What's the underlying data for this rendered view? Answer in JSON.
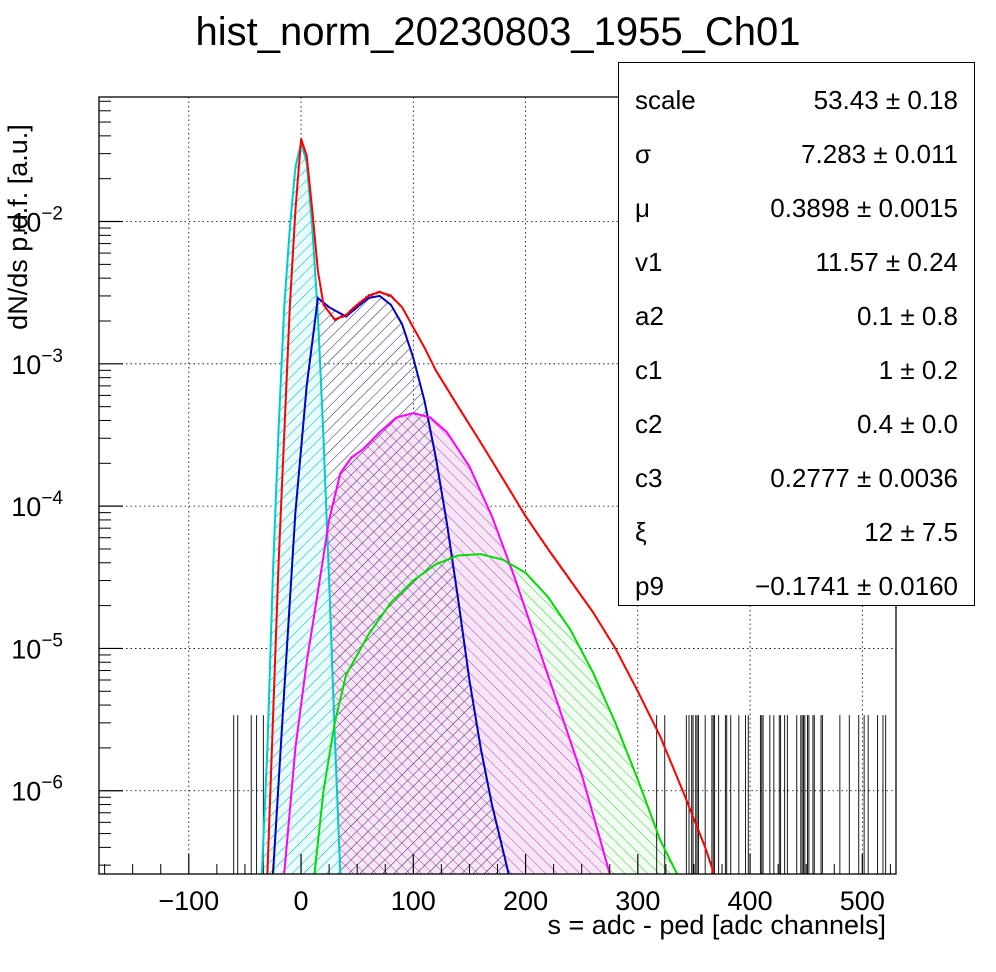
{
  "chart_data": {
    "type": "line",
    "title": "hist_norm_20230803_1955_Ch01",
    "xlabel": "s = adc - ped [adc channels]",
    "ylabel": "dN/ds p.d.f. [a.u.]",
    "xlim": [
      -180,
      530
    ],
    "ylim": [
      2.6e-07,
      0.075
    ],
    "yscale": "log",
    "grid": true,
    "x_ticks": [
      {
        "value": -100,
        "label": "−100"
      },
      {
        "value": 0,
        "label": "0"
      },
      {
        "value": 100,
        "label": "100"
      },
      {
        "value": 200,
        "label": "200"
      },
      {
        "value": 300,
        "label": "300"
      },
      {
        "value": 400,
        "label": "400"
      },
      {
        "value": 500,
        "label": "500"
      }
    ],
    "y_ticks": [
      {
        "value": 0.01,
        "base": "10",
        "exp": "−2"
      },
      {
        "value": 0.001,
        "base": "10",
        "exp": "−3"
      },
      {
        "value": 0.0001,
        "base": "10",
        "exp": "−4"
      },
      {
        "value": 1e-05,
        "base": "10",
        "exp": "−5"
      },
      {
        "value": 1e-06,
        "base": "10",
        "exp": "−6"
      }
    ],
    "series": [
      {
        "color": "#ff0000",
        "hatch": "none",
        "points": [
          [
            -30,
            2.6e-07
          ],
          [
            -20,
            4e-05
          ],
          [
            -10,
            0.0025
          ],
          [
            -5,
            0.012
          ],
          [
            0,
            0.038
          ],
          [
            5,
            0.029
          ],
          [
            10,
            0.012
          ],
          [
            15,
            0.0045
          ],
          [
            20,
            0.0026
          ],
          [
            30,
            0.00205
          ],
          [
            40,
            0.0022
          ],
          [
            50,
            0.0026
          ],
          [
            60,
            0.003
          ],
          [
            70,
            0.0032
          ],
          [
            80,
            0.003
          ],
          [
            90,
            0.0025
          ],
          [
            100,
            0.0018
          ],
          [
            110,
            0.0013
          ],
          [
            120,
            0.0009
          ],
          [
            140,
            0.0005
          ],
          [
            160,
            0.00028
          ],
          [
            180,
            0.000155
          ],
          [
            200,
            8.5e-05
          ],
          [
            220,
            5e-05
          ],
          [
            240,
            3e-05
          ],
          [
            260,
            1.8e-05
          ],
          [
            280,
            1e-05
          ],
          [
            300,
            5e-06
          ],
          [
            320,
            2.4e-06
          ],
          [
            340,
            1e-06
          ],
          [
            360,
            4e-07
          ],
          [
            368,
            2.6e-07
          ]
        ]
      },
      {
        "color": "#00cccc",
        "hatch": "cyan",
        "points": [
          [
            -35,
            2.6e-07
          ],
          [
            -30,
            2e-06
          ],
          [
            -25,
            3.5e-05
          ],
          [
            -20,
            0.00035
          ],
          [
            -15,
            0.0025
          ],
          [
            -10,
            0.009
          ],
          [
            -5,
            0.024
          ],
          [
            0,
            0.036
          ],
          [
            5,
            0.026
          ],
          [
            10,
            0.009
          ],
          [
            15,
            0.0022
          ],
          [
            20,
            0.0003
          ],
          [
            25,
            3e-05
          ],
          [
            30,
            2.5e-06
          ],
          [
            35,
            2.6e-07
          ]
        ]
      },
      {
        "color": "#0000cc",
        "hatch": "navy",
        "points": [
          [
            -25,
            2.6e-07
          ],
          [
            -15,
            5e-06
          ],
          [
            -5,
            9e-05
          ],
          [
            5,
            0.0007
          ],
          [
            15,
            0.0029
          ],
          [
            25,
            0.0025
          ],
          [
            40,
            0.00215
          ],
          [
            50,
            0.0025
          ],
          [
            60,
            0.0029
          ],
          [
            70,
            0.003
          ],
          [
            80,
            0.0026
          ],
          [
            90,
            0.0019
          ],
          [
            100,
            0.0011
          ],
          [
            110,
            0.00055
          ],
          [
            120,
            0.00022
          ],
          [
            130,
            7.5e-05
          ],
          [
            140,
            2.2e-05
          ],
          [
            150,
            6e-06
          ],
          [
            160,
            2e-06
          ],
          [
            170,
            8e-07
          ],
          [
            185,
            2.6e-07
          ]
        ]
      },
      {
        "color": "#ff00ff",
        "hatch": "magenta",
        "points": [
          [
            -15,
            2.6e-07
          ],
          [
            -5,
            2e-06
          ],
          [
            5,
            8e-06
          ],
          [
            15,
            2.5e-05
          ],
          [
            25,
            8e-05
          ],
          [
            35,
            0.00017
          ],
          [
            45,
            0.00022
          ],
          [
            55,
            0.00025
          ],
          [
            70,
            0.00033
          ],
          [
            85,
            0.00042
          ],
          [
            100,
            0.00045
          ],
          [
            115,
            0.00042
          ],
          [
            130,
            0.00033
          ],
          [
            150,
            0.00019
          ],
          [
            170,
            8.5e-05
          ],
          [
            190,
            3.2e-05
          ],
          [
            210,
            1.1e-05
          ],
          [
            230,
            3.8e-06
          ],
          [
            250,
            1.3e-06
          ],
          [
            265,
            5e-07
          ],
          [
            275,
            2.6e-07
          ]
        ]
      },
      {
        "color": "#00dd00",
        "hatch": "green",
        "points": [
          [
            12,
            2.6e-07
          ],
          [
            20,
            1e-06
          ],
          [
            30,
            3e-06
          ],
          [
            40,
            6.5e-06
          ],
          [
            60,
            1.25e-05
          ],
          [
            80,
            2.1e-05
          ],
          [
            100,
            3e-05
          ],
          [
            120,
            3.9e-05
          ],
          [
            140,
            4.5e-05
          ],
          [
            160,
            4.6e-05
          ],
          [
            180,
            4.2e-05
          ],
          [
            200,
            3.4e-05
          ],
          [
            220,
            2.3e-05
          ],
          [
            240,
            1.35e-05
          ],
          [
            260,
            6.8e-06
          ],
          [
            280,
            3e-06
          ],
          [
            300,
            1.2e-06
          ],
          [
            320,
            4.5e-07
          ],
          [
            335,
            2.6e-07
          ]
        ]
      }
    ]
  },
  "stats": {
    "rows": [
      {
        "name": "scale",
        "value": "53.43 ± 0.18"
      },
      {
        "name": "σ",
        "value": "7.283 ± 0.011"
      },
      {
        "name": "μ",
        "value": "0.3898 ± 0.0015"
      },
      {
        "name": "v1",
        "value": "11.57 ± 0.24"
      },
      {
        "name": "a2",
        "value": "0.1 ± 0.8"
      },
      {
        "name": "c1",
        "value": "1 ± 0.2"
      },
      {
        "name": "c2",
        "value": "0.4 ± 0.0"
      },
      {
        "name": "c3",
        "value": "0.2777 ± 0.0036"
      },
      {
        "name": "ξ",
        "value": "12 ± 7.5"
      },
      {
        "name": "p9",
        "value": "−0.1741 ± 0.0160"
      }
    ]
  }
}
